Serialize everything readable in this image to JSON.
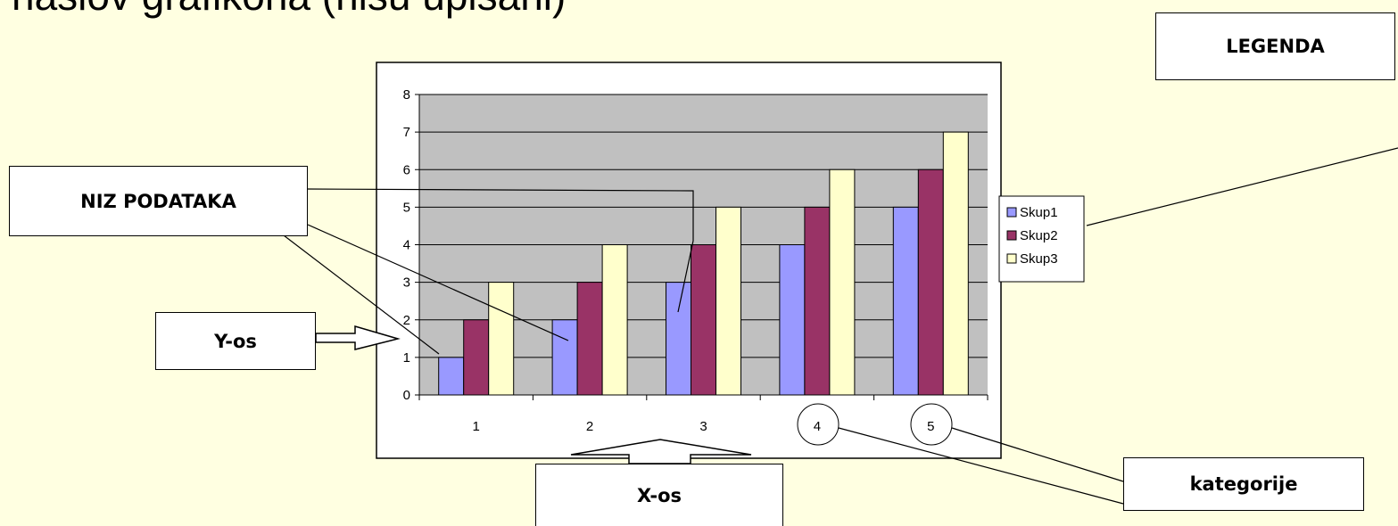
{
  "title": "i naslov grafikona (nisu upisani)",
  "callouts": {
    "legenda": "LEGENDA",
    "niz_podataka": "NIZ PODATAKA",
    "y_os": "Y-os",
    "x_os": "X-os",
    "kategorije": "kategorije"
  },
  "colors": {
    "background": "#ffffe1",
    "plot_area": "#c0c0c0",
    "skup1": "#9999ff",
    "skup2": "#993366",
    "skup3": "#ffffcc"
  },
  "chart_data": {
    "type": "bar",
    "categories": [
      "1",
      "2",
      "3",
      "4",
      "5"
    ],
    "series": [
      {
        "name": "Skup1",
        "values": [
          1,
          2,
          3,
          4,
          5
        ]
      },
      {
        "name": "Skup2",
        "values": [
          2,
          3,
          4,
          5,
          6
        ]
      },
      {
        "name": "Skup3",
        "values": [
          3,
          4,
          5,
          6,
          7
        ]
      }
    ],
    "ylim": [
      0,
      8
    ],
    "yticks": [
      0,
      1,
      2,
      3,
      4,
      5,
      6,
      7,
      8
    ],
    "grid": true,
    "legend": "right"
  }
}
